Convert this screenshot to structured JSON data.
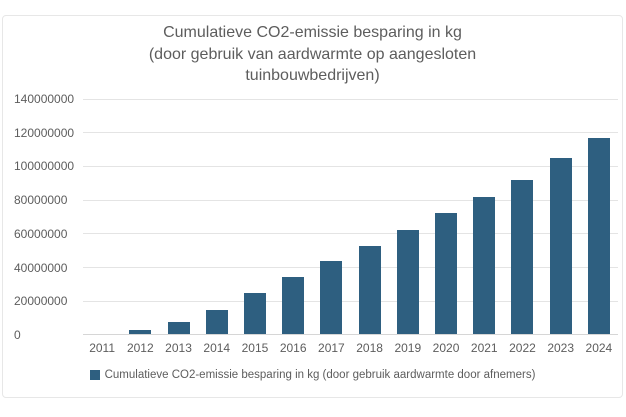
{
  "chart": {
    "title_lines": [
      "Cumulatieve CO2-emissie besparing in kg",
      "(door gebruik van aardwarmte op aangesloten",
      "tuinbouwbedrijven)"
    ],
    "legend_label": "Cumulatieve CO2-emissie besparing in kg (door gebruik aardwarmte door afnemers)"
  },
  "colors": {
    "bar": "#2e5f80",
    "text": "#5d5d5d",
    "gridline": "#e4e4e4",
    "axis_line": "#d6d6d6",
    "container_border": "#e7e7e7"
  },
  "chart_data": {
    "type": "bar",
    "title": "Cumulatieve CO2-emissie besparing in kg (door gebruik van aardwarmte op aangesloten tuinbouwbedrijven)",
    "categories": [
      "2011",
      "2012",
      "2013",
      "2014",
      "2015",
      "2016",
      "2017",
      "2018",
      "2019",
      "2020",
      "2021",
      "2022",
      "2023",
      "2024"
    ],
    "series": [
      {
        "name": "Cumulatieve CO2-emissie besparing in kg (door gebruik aardwarmte door afnemers)",
        "values": [
          0,
          2500000,
          7000000,
          14500000,
          24500000,
          34000000,
          43500000,
          52000000,
          61500000,
          71500000,
          81500000,
          91500000,
          104500000,
          116000000
        ]
      }
    ],
    "xlabel": "",
    "ylabel": "",
    "ylim": [
      0,
      140000000
    ],
    "yticks": [
      0,
      20000000,
      40000000,
      60000000,
      80000000,
      100000000,
      120000000,
      140000000
    ],
    "grid": true,
    "legend_position": "bottom"
  }
}
